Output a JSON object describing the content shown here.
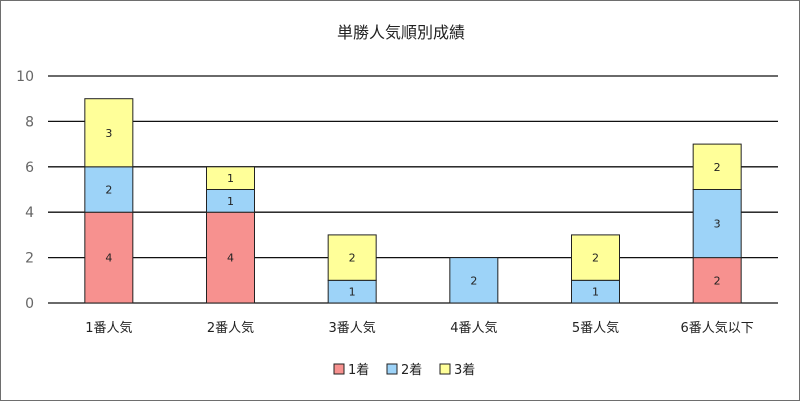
{
  "chart_data": {
    "type": "bar",
    "stacked": true,
    "title": "単勝人気順別成績",
    "categories": [
      "1番人気",
      "2番人気",
      "3番人気",
      "4番人気",
      "5番人気",
      "6番人気以下"
    ],
    "series": [
      {
        "name": "1着",
        "color": "#f7918f",
        "values": [
          4,
          4,
          0,
          0,
          0,
          2
        ]
      },
      {
        "name": "2着",
        "color": "#9dd3f8",
        "values": [
          2,
          1,
          1,
          2,
          1,
          3
        ]
      },
      {
        "name": "3着",
        "color": "#ffff99",
        "values": [
          3,
          1,
          2,
          0,
          2,
          2
        ]
      }
    ],
    "ylim": [
      0,
      10
    ],
    "yticks": [
      "0",
      "2",
      "4",
      "6",
      "8",
      "10"
    ],
    "grid": true,
    "legend_position": "bottom"
  }
}
